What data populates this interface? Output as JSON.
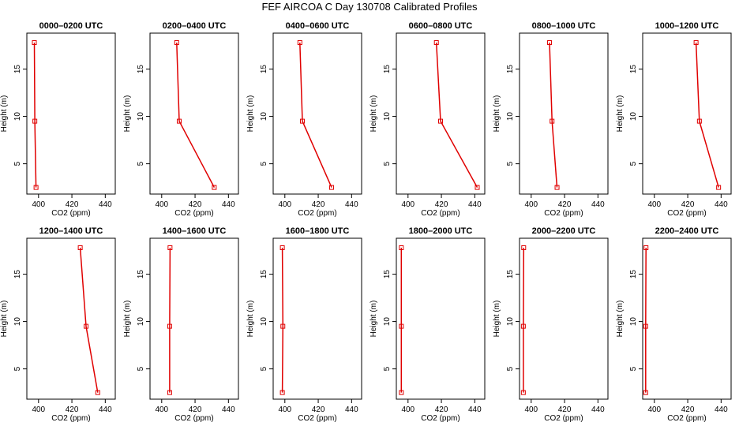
{
  "figure": {
    "title": "FEF AIRCOA C  Day 130708  Calibrated Profiles"
  },
  "style": {
    "line_color": "#e00000",
    "marker_color": "#e00000",
    "axis_color": "#000000"
  },
  "chart_data": [
    {
      "type": "line",
      "title": "0000–0200 UTC",
      "xlabel": "CO2 (ppm)",
      "ylabel": "Height (m)",
      "xlim": [
        393,
        446
      ],
      "ylim": [
        1.8,
        18.8
      ],
      "x_ticks": [
        400,
        420,
        440
      ],
      "y_ticks": [
        5,
        10,
        15
      ],
      "series": [
        {
          "name": "profile",
          "x": [
            397.5,
            397.8,
            398.5
          ],
          "y": [
            17.8,
            9.5,
            2.5
          ]
        }
      ]
    },
    {
      "type": "line",
      "title": "0200–0400 UTC",
      "xlabel": "CO2 (ppm)",
      "ylabel": "Height (m)",
      "xlim": [
        393,
        446
      ],
      "ylim": [
        1.8,
        18.8
      ],
      "x_ticks": [
        400,
        420,
        440
      ],
      "y_ticks": [
        5,
        10,
        15
      ],
      "series": [
        {
          "name": "profile",
          "x": [
            409,
            410.5,
            431.5
          ],
          "y": [
            17.8,
            9.5,
            2.5
          ]
        }
      ]
    },
    {
      "type": "line",
      "title": "0400–0600 UTC",
      "xlabel": "CO2 (ppm)",
      "ylabel": "Height (m)",
      "xlim": [
        393,
        446
      ],
      "ylim": [
        1.8,
        18.8
      ],
      "x_ticks": [
        400,
        420,
        440
      ],
      "y_ticks": [
        5,
        10,
        15
      ],
      "series": [
        {
          "name": "profile",
          "x": [
            409,
            410.5,
            428
          ],
          "y": [
            17.8,
            9.5,
            2.5
          ]
        }
      ]
    },
    {
      "type": "line",
      "title": "0600–0800 UTC",
      "xlabel": "CO2 (ppm)",
      "ylabel": "Height (m)",
      "xlim": [
        393,
        446
      ],
      "ylim": [
        1.8,
        18.8
      ],
      "x_ticks": [
        400,
        420,
        440
      ],
      "y_ticks": [
        5,
        10,
        15
      ],
      "series": [
        {
          "name": "profile",
          "x": [
            417,
            419.5,
            441.5
          ],
          "y": [
            17.8,
            9.5,
            2.5
          ]
        }
      ]
    },
    {
      "type": "line",
      "title": "0800–1000 UTC",
      "xlabel": "CO2 (ppm)",
      "ylabel": "Height (m)",
      "xlim": [
        393,
        446
      ],
      "ylim": [
        1.8,
        18.8
      ],
      "x_ticks": [
        400,
        420,
        440
      ],
      "y_ticks": [
        5,
        10,
        15
      ],
      "series": [
        {
          "name": "profile",
          "x": [
            411,
            412.5,
            415.5
          ],
          "y": [
            17.8,
            9.5,
            2.5
          ]
        }
      ]
    },
    {
      "type": "line",
      "title": "1000–1200 UTC",
      "xlabel": "CO2 (ppm)",
      "ylabel": "Height (m)",
      "xlim": [
        393,
        446
      ],
      "ylim": [
        1.8,
        18.8
      ],
      "x_ticks": [
        400,
        420,
        440
      ],
      "y_ticks": [
        5,
        10,
        15
      ],
      "series": [
        {
          "name": "profile",
          "x": [
            425,
            427,
            438.5
          ],
          "y": [
            17.8,
            9.5,
            2.5
          ]
        }
      ]
    },
    {
      "type": "line",
      "title": "1200–1400 UTC",
      "xlabel": "CO2 (ppm)",
      "ylabel": "Height (m)",
      "xlim": [
        393,
        446
      ],
      "ylim": [
        1.8,
        18.8
      ],
      "x_ticks": [
        400,
        420,
        440
      ],
      "y_ticks": [
        5,
        10,
        15
      ],
      "series": [
        {
          "name": "profile",
          "x": [
            425,
            428.5,
            435.5
          ],
          "y": [
            17.8,
            9.5,
            2.5
          ]
        }
      ]
    },
    {
      "type": "line",
      "title": "1400–1600 UTC",
      "xlabel": "CO2 (ppm)",
      "ylabel": "Height (m)",
      "xlim": [
        393,
        446
      ],
      "ylim": [
        1.8,
        18.8
      ],
      "x_ticks": [
        400,
        420,
        440
      ],
      "y_ticks": [
        5,
        10,
        15
      ],
      "series": [
        {
          "name": "profile",
          "x": [
            405,
            404.8,
            404.8
          ],
          "y": [
            17.8,
            9.5,
            2.5
          ]
        }
      ]
    },
    {
      "type": "line",
      "title": "1600–1800 UTC",
      "xlabel": "CO2 (ppm)",
      "ylabel": "Height (m)",
      "xlim": [
        393,
        446
      ],
      "ylim": [
        1.8,
        18.8
      ],
      "x_ticks": [
        400,
        420,
        440
      ],
      "y_ticks": [
        5,
        10,
        15
      ],
      "series": [
        {
          "name": "profile",
          "x": [
            398.5,
            398.8,
            398.5
          ],
          "y": [
            17.8,
            9.5,
            2.5
          ]
        }
      ]
    },
    {
      "type": "line",
      "title": "1800–2000 UTC",
      "xlabel": "CO2 (ppm)",
      "ylabel": "Height (m)",
      "xlim": [
        393,
        446
      ],
      "ylim": [
        1.8,
        18.8
      ],
      "x_ticks": [
        400,
        420,
        440
      ],
      "y_ticks": [
        5,
        10,
        15
      ],
      "series": [
        {
          "name": "profile",
          "x": [
            396,
            396,
            396
          ],
          "y": [
            17.8,
            9.5,
            2.5
          ]
        }
      ]
    },
    {
      "type": "line",
      "title": "2000–2200 UTC",
      "xlabel": "CO2 (ppm)",
      "ylabel": "Height (m)",
      "xlim": [
        393,
        446
      ],
      "ylim": [
        1.8,
        18.8
      ],
      "x_ticks": [
        400,
        420,
        440
      ],
      "y_ticks": [
        5,
        10,
        15
      ],
      "series": [
        {
          "name": "profile",
          "x": [
            395.5,
            395.3,
            395.3
          ],
          "y": [
            17.8,
            9.5,
            2.5
          ]
        }
      ]
    },
    {
      "type": "line",
      "title": "2200–2400 UTC",
      "xlabel": "CO2 (ppm)",
      "ylabel": "Height (m)",
      "xlim": [
        393,
        446
      ],
      "ylim": [
        1.8,
        18.8
      ],
      "x_ticks": [
        400,
        420,
        440
      ],
      "y_ticks": [
        5,
        10,
        15
      ],
      "series": [
        {
          "name": "profile",
          "x": [
            395,
            394.8,
            394.8
          ],
          "y": [
            17.8,
            9.5,
            2.5
          ]
        }
      ]
    }
  ]
}
